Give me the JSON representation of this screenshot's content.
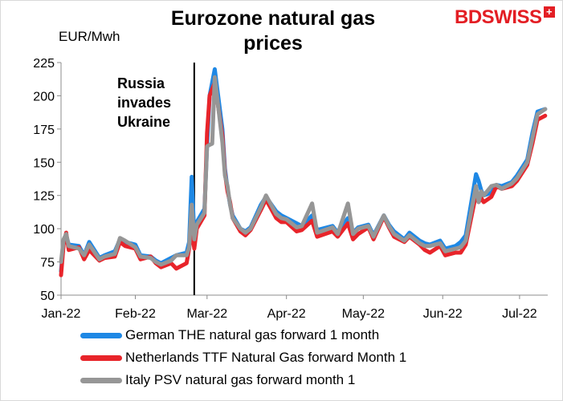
{
  "chart_data": {
    "type": "line",
    "title": "Eurozone natural gas prices",
    "ylabel": "EUR/Mwh",
    "ylim": [
      50,
      225
    ],
    "yticks": [
      50,
      75,
      100,
      125,
      150,
      175,
      200,
      225
    ],
    "xlim": [
      "2022-01-03",
      "2022-07-12"
    ],
    "xticks": [
      {
        "label": "Jan-22",
        "date": "2022-01-01"
      },
      {
        "label": "Feb-22",
        "date": "2022-02-01"
      },
      {
        "label": "Mar-22",
        "date": "2022-03-01"
      },
      {
        "label": "Apr-22",
        "date": "2022-04-01"
      },
      {
        "label": "May-22",
        "date": "2022-05-01"
      },
      {
        "label": "Jun-22",
        "date": "2022-06-01"
      },
      {
        "label": "Jul-22",
        "date": "2022-07-01"
      }
    ],
    "grid": false,
    "legend_position": "bottom",
    "annotations": [
      {
        "date": "2022-02-24",
        "text": "Russia invades Ukraine"
      }
    ],
    "x": [
      "2022-01-03",
      "2022-01-04",
      "2022-01-05",
      "2022-01-06",
      "2022-01-10",
      "2022-01-12",
      "2022-01-14",
      "2022-01-18",
      "2022-01-20",
      "2022-01-24",
      "2022-01-26",
      "2022-01-28",
      "2022-02-01",
      "2022-02-03",
      "2022-02-07",
      "2022-02-09",
      "2022-02-11",
      "2022-02-15",
      "2022-02-17",
      "2022-02-21",
      "2022-02-22",
      "2022-02-23",
      "2022-02-24",
      "2022-02-25",
      "2022-02-28",
      "2022-03-01",
      "2022-03-02",
      "2022-03-03",
      "2022-03-04",
      "2022-03-07",
      "2022-03-08",
      "2022-03-09",
      "2022-03-10",
      "2022-03-11",
      "2022-03-14",
      "2022-03-16",
      "2022-03-18",
      "2022-03-22",
      "2022-03-24",
      "2022-03-28",
      "2022-03-30",
      "2022-04-01",
      "2022-04-05",
      "2022-04-07",
      "2022-04-11",
      "2022-04-13",
      "2022-04-19",
      "2022-04-21",
      "2022-04-25",
      "2022-04-27",
      "2022-04-29",
      "2022-05-03",
      "2022-05-05",
      "2022-05-09",
      "2022-05-11",
      "2022-05-13",
      "2022-05-17",
      "2022-05-19",
      "2022-05-23",
      "2022-05-25",
      "2022-05-27",
      "2022-05-31",
      "2022-06-02",
      "2022-06-06",
      "2022-06-08",
      "2022-06-10",
      "2022-06-14",
      "2022-06-15",
      "2022-06-16",
      "2022-06-17",
      "2022-06-20",
      "2022-06-22",
      "2022-06-24",
      "2022-06-28",
      "2022-06-30",
      "2022-07-04",
      "2022-07-06",
      "2022-07-08",
      "2022-07-11"
    ],
    "series": [
      {
        "name": "German THE natural gas forward 1 month",
        "color": "#1e88e5",
        "values": [
          68,
          90,
          95,
          88,
          87,
          80,
          90,
          78,
          80,
          83,
          92,
          90,
          88,
          80,
          79,
          76,
          74,
          78,
          80,
          82,
          90,
          139,
          95,
          105,
          115,
          162,
          200,
          210,
          220,
          175,
          145,
          130,
          118,
          110,
          100,
          98,
          101,
          118,
          124,
          113,
          110,
          108,
          104,
          102,
          110,
          99,
          102,
          97,
          108,
          97,
          101,
          103,
          95,
          110,
          103,
          98,
          92,
          97,
          91,
          89,
          88,
          91,
          85,
          87,
          90,
          95,
          141,
          136,
          129,
          125,
          127,
          133,
          132,
          135,
          140,
          152,
          172,
          188,
          190
        ]
      },
      {
        "name": "Netherlands TTF Natural Gas forward Month 1",
        "color": "#e8242a",
        "values": [
          65,
          88,
          97,
          84,
          86,
          77,
          84,
          76,
          78,
          79,
          90,
          87,
          85,
          77,
          79,
          74,
          71,
          74,
          70,
          74,
          85,
          100,
          85,
          100,
          110,
          172,
          200,
          205,
          210,
          170,
          142,
          128,
          120,
          108,
          98,
          95,
          99,
          114,
          122,
          108,
          105,
          105,
          98,
          99,
          106,
          94,
          98,
          94,
          104,
          92,
          96,
          101,
          92,
          109,
          101,
          94,
          90,
          94,
          88,
          84,
          82,
          87,
          80,
          82,
          82,
          88,
          126,
          120,
          123,
          120,
          124,
          132,
          130,
          132,
          136,
          148,
          164,
          182,
          185
        ]
      },
      {
        "name": "Italy PSV natural gas forward month 1",
        "color": "#969696",
        "values": [
          75,
          92,
          96,
          87,
          85,
          80,
          88,
          77,
          79,
          81,
          93,
          91,
          86,
          79,
          78,
          75,
          73,
          76,
          80,
          80,
          86,
          118,
          92,
          103,
          112,
          162,
          163,
          164,
          214,
          165,
          140,
          132,
          118,
          108,
          100,
          97,
          100,
          116,
          125,
          111,
          108,
          107,
          101,
          102,
          119,
          97,
          101,
          96,
          119,
          96,
          100,
          102,
          94,
          110,
          102,
          96,
          91,
          95,
          89,
          87,
          87,
          89,
          83,
          85,
          86,
          91,
          132,
          120,
          128,
          125,
          132,
          133,
          130,
          134,
          138,
          150,
          168,
          186,
          190
        ]
      }
    ]
  }
}
